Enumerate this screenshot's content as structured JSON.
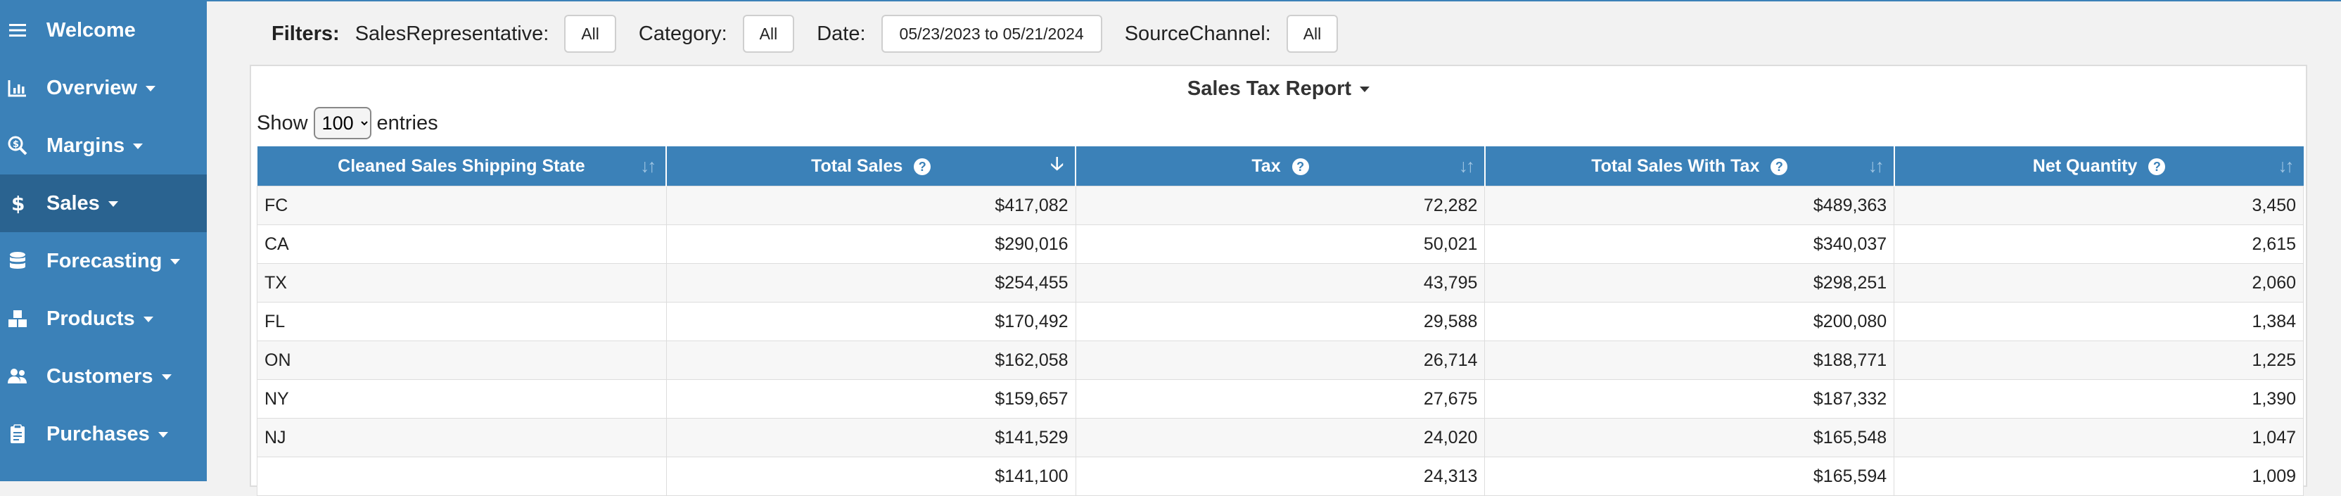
{
  "sidebar": {
    "items": [
      {
        "label": "Welcome",
        "icon": "menu-icon",
        "dropdown": false,
        "active": false
      },
      {
        "label": "Overview",
        "icon": "chart-icon",
        "dropdown": true,
        "active": false
      },
      {
        "label": "Margins",
        "icon": "search-dollar-icon",
        "dropdown": true,
        "active": false
      },
      {
        "label": "Sales",
        "icon": "dollar-icon",
        "dropdown": true,
        "active": true
      },
      {
        "label": "Forecasting",
        "icon": "database-icon",
        "dropdown": true,
        "active": false
      },
      {
        "label": "Products",
        "icon": "boxes-icon",
        "dropdown": true,
        "active": false
      },
      {
        "label": "Customers",
        "icon": "users-icon",
        "dropdown": true,
        "active": false
      },
      {
        "label": "Purchases",
        "icon": "clipboard-icon",
        "dropdown": true,
        "active": false
      }
    ]
  },
  "filters": {
    "title": "Filters:",
    "sales_rep_label": "SalesRepresentative:",
    "sales_rep_value": "All",
    "category_label": "Category:",
    "category_value": "All",
    "date_label": "Date:",
    "date_value": "05/23/2023 to 05/21/2024",
    "source_label": "SourceChannel:",
    "source_value": "All"
  },
  "report": {
    "title": "Sales Tax Report",
    "show_label": "Show",
    "entries_value": "100",
    "entries_label": "entries",
    "columns": [
      {
        "label": "Cleaned Sales Shipping State",
        "info": false,
        "sort": "none"
      },
      {
        "label": "Total Sales",
        "info": true,
        "sort": "desc"
      },
      {
        "label": "Tax",
        "info": true,
        "sort": "none"
      },
      {
        "label": "Total Sales With Tax",
        "info": true,
        "sort": "none"
      },
      {
        "label": "Net Quantity",
        "info": true,
        "sort": "none"
      }
    ],
    "rows": [
      [
        "FC",
        "$417,082",
        "72,282",
        "$489,363",
        "3,450"
      ],
      [
        "CA",
        "$290,016",
        "50,021",
        "$340,037",
        "2,615"
      ],
      [
        "TX",
        "$254,455",
        "43,795",
        "$298,251",
        "2,060"
      ],
      [
        "FL",
        "$170,492",
        "29,588",
        "$200,080",
        "1,384"
      ],
      [
        "ON",
        "$162,058",
        "26,714",
        "$188,771",
        "1,225"
      ],
      [
        "NY",
        "$159,657",
        "27,675",
        "$187,332",
        "1,390"
      ],
      [
        "NJ",
        "$141,529",
        "24,020",
        "$165,548",
        "1,047"
      ],
      [
        "",
        "$141,100",
        "24,313",
        "$165,594",
        "1,009"
      ]
    ]
  },
  "colors": {
    "primary": "#3b81b8",
    "active": "#2a6390"
  }
}
